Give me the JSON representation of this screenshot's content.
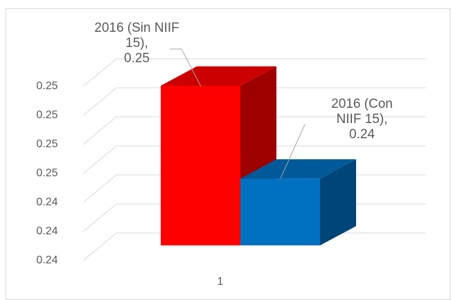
{
  "chart_data": {
    "type": "bar3d",
    "categories": [
      "1"
    ],
    "series": [
      {
        "name": "2016 (Sin NIIF 15)",
        "color": "#ff0000",
        "values": [
          0.2475
        ],
        "value_labels": [
          "0.25"
        ]
      },
      {
        "name": "2016 (Con NIIF 15)",
        "color": "#0070c0",
        "values": [
          0.2443
        ],
        "value_labels": [
          "0.24"
        ]
      }
    ],
    "label_separator": ",",
    "ylim": [
      0.242,
      0.248
    ],
    "yticks": [
      {
        "value": 0.242,
        "label": "0.24"
      },
      {
        "value": 0.243,
        "label": "0.24"
      },
      {
        "value": 0.244,
        "label": "0.24"
      },
      {
        "value": 0.245,
        "label": "0.25"
      },
      {
        "value": 0.246,
        "label": "0.25"
      },
      {
        "value": 0.247,
        "label": "0.25"
      },
      {
        "value": 0.248,
        "label": "0.25"
      }
    ],
    "grid": true
  }
}
